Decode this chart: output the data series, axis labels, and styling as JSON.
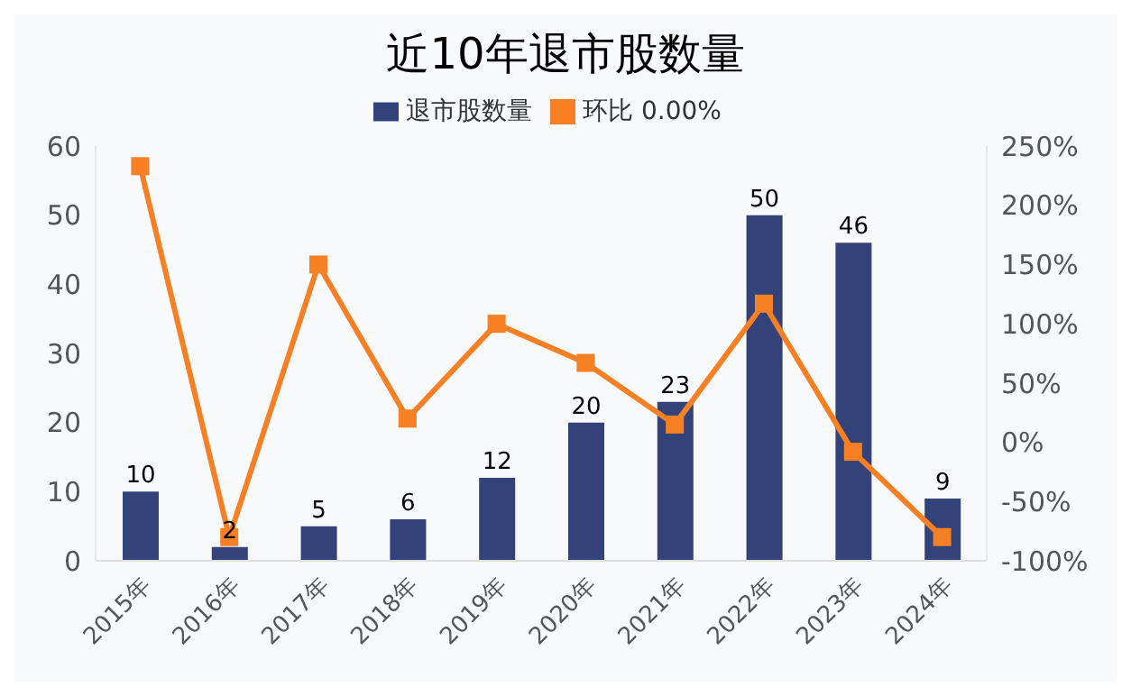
{
  "chart_data": {
    "type": "bar",
    "title": "近10年退市股数量",
    "categories": [
      "2015年",
      "2016年",
      "2017年",
      "2018年",
      "2019年",
      "2020年",
      "2021年",
      "2022年",
      "2023年",
      "2024年"
    ],
    "series": [
      {
        "name": "退市股数量",
        "color": "#34427a",
        "values": [
          10,
          2,
          5,
          6,
          12,
          20,
          23,
          50,
          46,
          9
        ],
        "data_labels": true
      },
      {
        "name": "环比  0.00%",
        "type": "line",
        "axis": "y2",
        "color": "#f77f24",
        "marker": "square",
        "values": [
          233,
          -80,
          150,
          20,
          100,
          67,
          15,
          117,
          -8,
          -80
        ]
      }
    ],
    "ylim": [
      0,
      60
    ],
    "yticks": [
      0,
      10,
      20,
      30,
      40,
      50,
      60
    ],
    "y2lim": [
      -100,
      250
    ],
    "y2ticks": [
      {
        "value": -100,
        "label": "-100%"
      },
      {
        "value": -50,
        "label": "-50%"
      },
      {
        "value": 0,
        "label": "0%"
      },
      {
        "value": 50,
        "label": "50%"
      },
      {
        "value": 100,
        "label": "100%"
      },
      {
        "value": 150,
        "label": "150%"
      },
      {
        "value": 200,
        "label": "200%"
      },
      {
        "value": 250,
        "label": "250%"
      }
    ],
    "grid": false,
    "legend": "top"
  }
}
